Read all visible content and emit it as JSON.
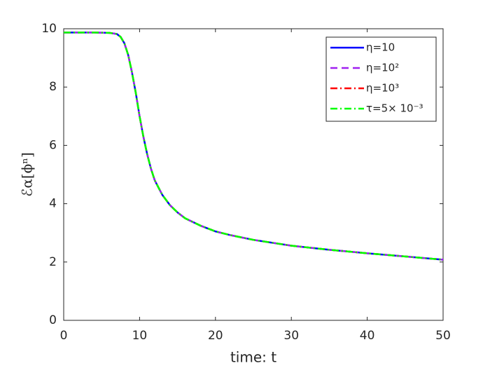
{
  "chart_data": {
    "type": "line",
    "xlabel": "time: t",
    "ylabel": "ℰα[ϕⁿ]",
    "x": [
      0,
      2,
      4,
      6,
      7,
      7.5,
      8,
      8.5,
      9,
      9.5,
      10,
      10.5,
      11,
      11.5,
      12,
      13,
      14,
      15,
      16,
      18,
      20,
      22,
      25,
      30,
      35,
      40,
      45,
      50
    ],
    "series": [
      {
        "name": "η=10",
        "color": "#0000ff",
        "dash": "solid",
        "values": [
          9.87,
          9.87,
          9.87,
          9.86,
          9.82,
          9.72,
          9.5,
          9.1,
          8.5,
          7.8,
          7.0,
          6.3,
          5.7,
          5.2,
          4.8,
          4.3,
          3.95,
          3.7,
          3.5,
          3.25,
          3.05,
          2.92,
          2.76,
          2.56,
          2.42,
          2.3,
          2.19,
          2.08
        ]
      },
      {
        "name": "η=10²",
        "color": "#a020f0",
        "dash": "dashed",
        "values": [
          9.87,
          9.87,
          9.87,
          9.86,
          9.82,
          9.72,
          9.5,
          9.1,
          8.5,
          7.8,
          7.0,
          6.3,
          5.7,
          5.2,
          4.8,
          4.3,
          3.95,
          3.7,
          3.5,
          3.25,
          3.05,
          2.92,
          2.76,
          2.56,
          2.42,
          2.3,
          2.19,
          2.08
        ]
      },
      {
        "name": "η=10³",
        "color": "#ff0000",
        "dash": "dashdot",
        "values": [
          9.87,
          9.87,
          9.87,
          9.86,
          9.82,
          9.72,
          9.5,
          9.1,
          8.5,
          7.8,
          7.0,
          6.3,
          5.7,
          5.2,
          4.8,
          4.3,
          3.95,
          3.7,
          3.5,
          3.25,
          3.05,
          2.92,
          2.76,
          2.56,
          2.42,
          2.3,
          2.19,
          2.08
        ]
      },
      {
        "name": "τ=5× 10⁻³",
        "color": "#00ff00",
        "dash": "dashdot",
        "values": [
          9.87,
          9.87,
          9.87,
          9.86,
          9.82,
          9.72,
          9.5,
          9.1,
          8.5,
          7.8,
          7.0,
          6.3,
          5.7,
          5.2,
          4.8,
          4.3,
          3.95,
          3.7,
          3.5,
          3.25,
          3.05,
          2.92,
          2.76,
          2.56,
          2.42,
          2.3,
          2.19,
          2.08
        ]
      }
    ],
    "xlim": [
      0,
      50
    ],
    "xticks": [
      0,
      10,
      20,
      30,
      40,
      50
    ],
    "ylim": [
      0,
      10
    ],
    "yticks": [
      0,
      2,
      4,
      6,
      8,
      10
    ],
    "grid": false,
    "legend": "upper right"
  }
}
